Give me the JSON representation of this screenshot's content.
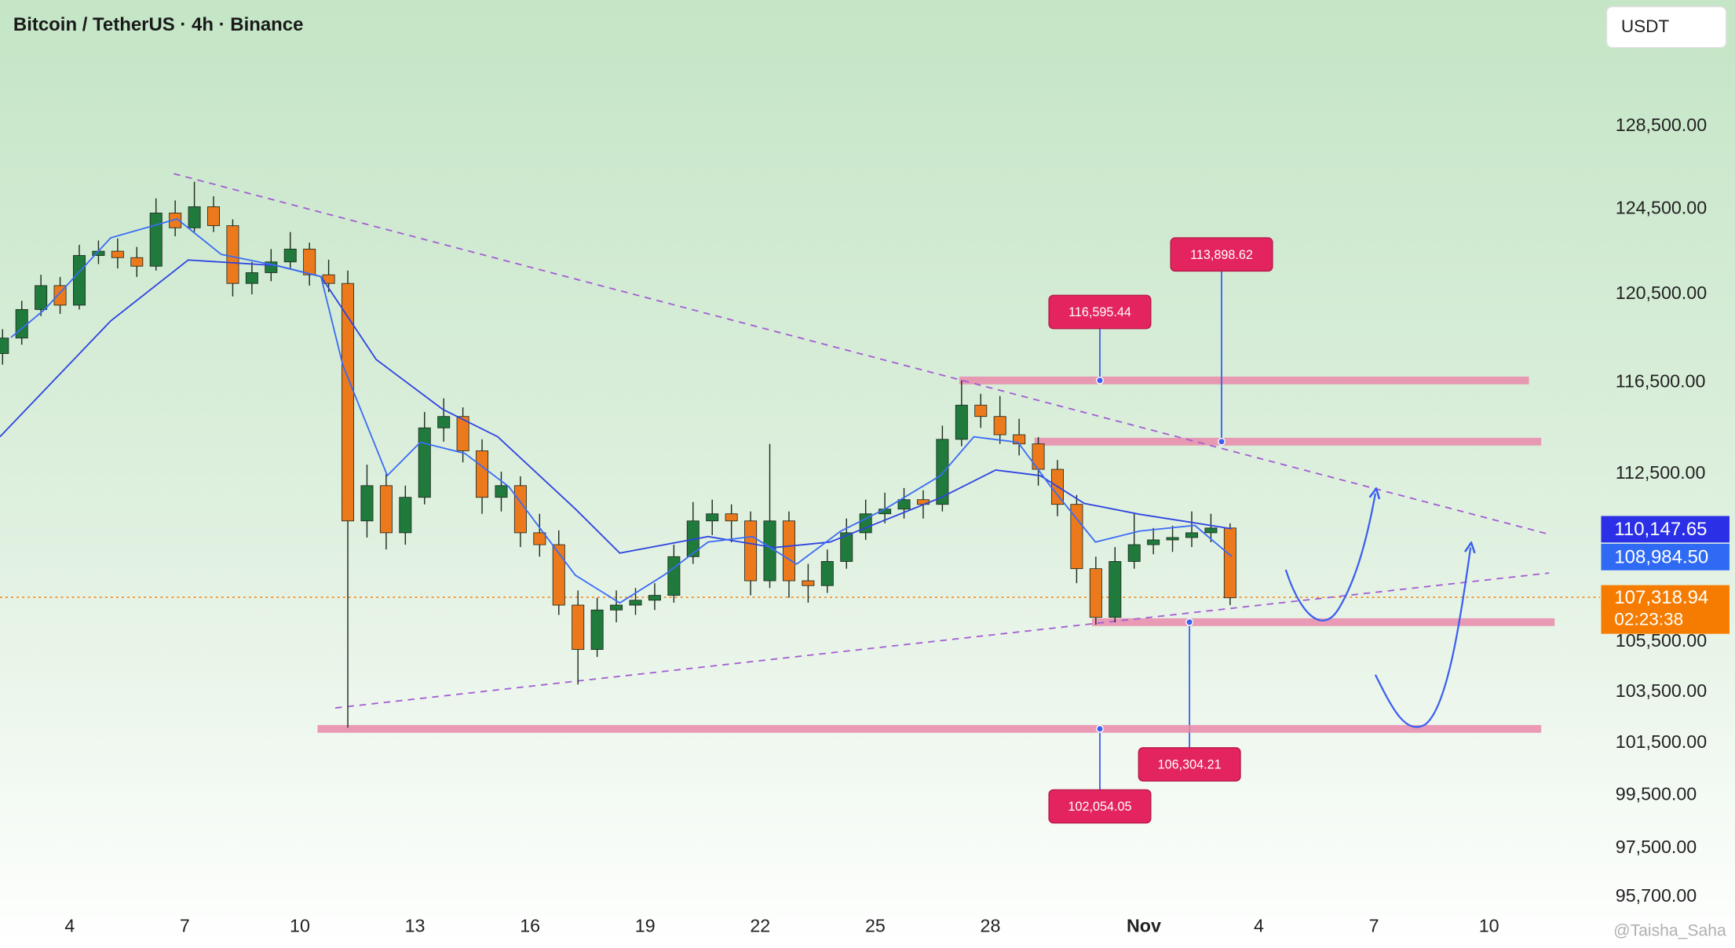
{
  "chart_data": {
    "type": "candlestick",
    "title": "Bitcoin / TetherUS · 4h · Binance",
    "currency": "USDT",
    "watermark": "@Taisha_Saha",
    "log": true,
    "up_color": "#1f7a3c",
    "down_color": "#ec7a1c",
    "xlim": [
      2.183,
      43.72
    ],
    "ylim": [
      95336,
      134845
    ],
    "xticks": [
      4,
      7,
      10,
      13,
      16,
      19,
      22,
      25,
      28,
      {
        "value": 32,
        "label": "Nov"
      },
      {
        "value": 35,
        "label": "4"
      },
      {
        "value": 38,
        "label": "7"
      },
      {
        "value": 41,
        "label": "10"
      }
    ],
    "yticks": [
      {
        "value": 95700,
        "label": "95,700.00"
      },
      {
        "value": 97500,
        "label": "97,500.00"
      },
      {
        "value": 99500,
        "label": "99,500.00"
      },
      {
        "value": 101500,
        "label": "101,500.00"
      },
      {
        "value": 103500,
        "label": "103,500.00"
      },
      {
        "value": 105500,
        "label": "105,500.00"
      },
      {
        "value": 112500,
        "label": "112,500.00"
      },
      {
        "value": 116500,
        "label": "116,500.00"
      },
      {
        "value": 120500,
        "label": "120,500.00"
      },
      {
        "value": 124500,
        "label": "124,500.00"
      },
      {
        "value": 128500,
        "label": "128,500.00"
      }
    ],
    "x": [
      2.25,
      2.75,
      3.25,
      3.75,
      4.25,
      4.75,
      5.25,
      5.75,
      6.25,
      6.75,
      7.25,
      7.75,
      8.25,
      8.75,
      9.25,
      9.75,
      10.25,
      10.75,
      11.25,
      11.75,
      12.25,
      12.75,
      13.25,
      13.75,
      14.25,
      14.75,
      15.25,
      15.75,
      16.25,
      16.75,
      17.25,
      17.75,
      18.25,
      18.75,
      19.25,
      19.75,
      20.25,
      20.75,
      21.25,
      21.75,
      22.25,
      22.75,
      23.25,
      23.75,
      24.25,
      24.75,
      25.25,
      25.75,
      26.25,
      26.75,
      27.25,
      27.75,
      28.25,
      28.75,
      29.25,
      29.75,
      30.25,
      30.75,
      31.25,
      31.75,
      32.25,
      32.75,
      33.25,
      33.75,
      34.25
    ],
    "open": [
      117800,
      118500,
      119800,
      120900,
      120000,
      122300,
      122500,
      122200,
      121800,
      124300,
      123600,
      124600,
      123700,
      121000,
      121500,
      122000,
      122600,
      121400,
      121000,
      110500,
      112000,
      110000,
      111500,
      114500,
      115000,
      113500,
      111500,
      112000,
      110000,
      109500,
      107000,
      105200,
      106800,
      107000,
      107200,
      107400,
      109000,
      110500,
      110800,
      110500,
      108000,
      110500,
      108000,
      107800,
      108800,
      110000,
      110800,
      111000,
      111400,
      111200,
      114000,
      115500,
      115000,
      114200,
      113800,
      112700,
      111200,
      108500,
      106500,
      108800,
      109500,
      109700,
      109800,
      110000,
      110200
    ],
    "high": [
      118900,
      120200,
      121400,
      121300,
      122800,
      123000,
      123100,
      122700,
      125000,
      124900,
      125800,
      125100,
      124000,
      122000,
      122600,
      123400,
      122900,
      122100,
      121600,
      112900,
      112500,
      112000,
      115200,
      115800,
      115400,
      114000,
      112600,
      112400,
      110800,
      110100,
      107600,
      107300,
      107600,
      107700,
      107900,
      109500,
      111300,
      111400,
      111200,
      110900,
      113800,
      110900,
      108700,
      109300,
      110600,
      111400,
      111700,
      111900,
      111800,
      114600,
      116600,
      116000,
      115900,
      114900,
      114100,
      113100,
      111600,
      109000,
      109400,
      110800,
      110200,
      110300,
      110900,
      110800,
      110400
    ],
    "low": [
      117300,
      118200,
      119500,
      119600,
      119800,
      121900,
      121700,
      121300,
      121600,
      123200,
      123400,
      123400,
      120400,
      120500,
      121100,
      121700,
      120900,
      120600,
      102100,
      109800,
      109300,
      109500,
      111200,
      113900,
      113000,
      110800,
      110900,
      109400,
      109000,
      106600,
      103800,
      104900,
      106300,
      106600,
      106800,
      107100,
      108700,
      109900,
      109600,
      107400,
      107700,
      107300,
      107100,
      107500,
      108500,
      109700,
      110400,
      110600,
      110600,
      110900,
      113700,
      114500,
      113800,
      113300,
      112000,
      110700,
      107900,
      106200,
      106300,
      108500,
      109100,
      109200,
      109400,
      109600,
      107000
    ],
    "close": [
      118500,
      119800,
      120900,
      120000,
      122300,
      122500,
      122200,
      121800,
      124300,
      123600,
      124600,
      123700,
      121000,
      121500,
      122000,
      122600,
      121400,
      121000,
      110500,
      112000,
      110000,
      111500,
      114500,
      115000,
      113500,
      111500,
      112000,
      110000,
      109500,
      107000,
      105200,
      106800,
      107000,
      107200,
      107400,
      109000,
      110500,
      110800,
      110500,
      108000,
      110500,
      108000,
      107800,
      108800,
      110000,
      110800,
      111000,
      111400,
      111200,
      114000,
      115500,
      115000,
      114200,
      113800,
      112700,
      111200,
      108500,
      106500,
      108800,
      109500,
      109700,
      109800,
      110000,
      110200,
      107300
    ],
    "lines": [
      {
        "color": "#2f45e0",
        "x": [
          2.18,
          5.07,
          7.09,
          9.39,
          10.55,
          11.99,
          13.72,
          15.16,
          17.18,
          18.34,
          20.64,
          22.37,
          23.82,
          25.26,
          26.7,
          28.14,
          29.3,
          30.45,
          31.89,
          34.29
        ],
        "values": [
          114110,
          119280,
          122090,
          121830,
          121320,
          117530,
          115320,
          114110,
          111010,
          109150,
          109840,
          109380,
          109610,
          110540,
          111480,
          112670,
          112430,
          111240,
          110780,
          110170
        ]
      },
      {
        "color": "#3b6cf5",
        "x": [
          2.47,
          3.34,
          5.07,
          6.8,
          7.95,
          9.39,
          10.55,
          11.12,
          12.28,
          13.14,
          14.3,
          15.45,
          17.18,
          18.34,
          19.49,
          20.64,
          21.8,
          22.95,
          24.1,
          25.26,
          26.7,
          27.57,
          28.72,
          29.58,
          30.74,
          31.89,
          33.33,
          34.29
        ],
        "values": [
          118530,
          119790,
          123130,
          124020,
          122350,
          121830,
          121320,
          117280,
          112430,
          113870,
          113390,
          111950,
          108230,
          107090,
          108230,
          109610,
          109840,
          108690,
          110070,
          111010,
          112430,
          114110,
          113870,
          111950,
          109610,
          110070,
          110310,
          109010
        ]
      }
    ],
    "zones": [
      {
        "value": 116595.44,
        "label": "116,595.44",
        "x": [
          27.19,
          42.04
        ]
      },
      {
        "value": 113898.62,
        "label": "113,898.62",
        "x": [
          29.15,
          42.36
        ]
      },
      {
        "value": 106304.21,
        "label": "106,304.21",
        "x": [
          30.65,
          42.71
        ]
      },
      {
        "value": 102054.05,
        "label": "102,054.05",
        "x": [
          10.46,
          42.36
        ]
      }
    ],
    "price_tags": [
      {
        "value": 110147.65,
        "label": "110,147.65",
        "color": "#2b2fe6"
      },
      {
        "value": 108984.5,
        "label": "108,984.50",
        "color": "#2f6af5"
      }
    ],
    "last_price": {
      "value": 107318.94,
      "label": "107,318.94",
      "countdown": "02:23:38",
      "color": "#f57c00"
    }
  }
}
